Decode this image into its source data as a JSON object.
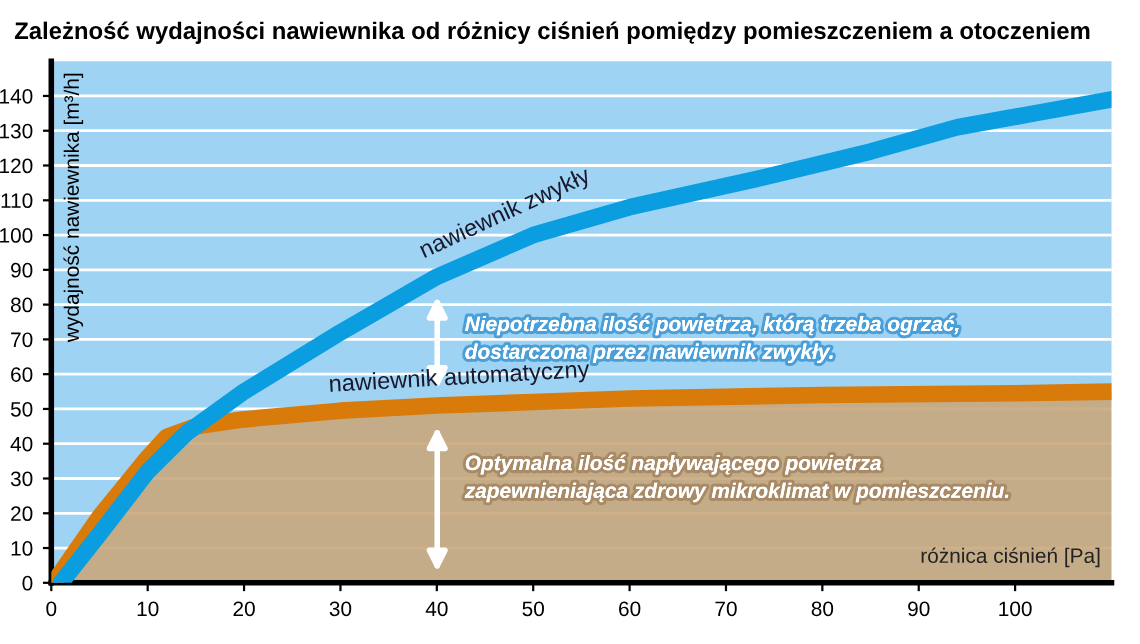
{
  "chart_data": {
    "type": "line",
    "title": "Zależność wydajności nawiewnika od różnicy ciśnień pomiędzy pomieszczeniem a otoczeniem",
    "xlabel": "różnica ciśnień [Pa]",
    "ylabel": "wydajność nawiewnika [m³/h]",
    "series": [
      {
        "name": "nawiewnik zwykły",
        "color": "#0a9ee0",
        "x": [
          1,
          5,
          10,
          14,
          20,
          30,
          40,
          50,
          60,
          73,
          85,
          94,
          102,
          110
        ],
        "values": [
          0,
          14,
          32,
          43,
          55,
          72,
          88,
          100,
          108,
          116,
          124,
          131,
          135,
          139
        ]
      },
      {
        "name": "nawiewnik automatyczny",
        "type": "area",
        "color": "#d97b0a",
        "x": [
          0.5,
          5,
          10,
          12,
          15,
          20,
          30,
          40,
          50,
          60,
          80,
          100,
          110
        ],
        "values": [
          1,
          19,
          36,
          42,
          45,
          47,
          49.5,
          51,
          52,
          53,
          54,
          54.5,
          55
        ]
      }
    ],
    "annotations": [
      "Niepotrzebna ilość powietrza, którą trzeba ogrzać,\ndostarczona przez nawiewnik zwykły.",
      "Optymalna ilość napływającego powietrza\nzapewnieniająca zdrowy mikroklimat w pomieszczeniu."
    ],
    "xlim": [
      0,
      110
    ],
    "ylim": [
      0,
      150
    ],
    "xticks": [
      0,
      10,
      20,
      30,
      40,
      50,
      60,
      70,
      80,
      90,
      100
    ],
    "yticks": [
      0,
      10,
      20,
      30,
      40,
      50,
      60,
      70,
      80,
      90,
      100,
      110,
      120,
      130,
      140
    ],
    "grid": "y",
    "legend": false
  }
}
